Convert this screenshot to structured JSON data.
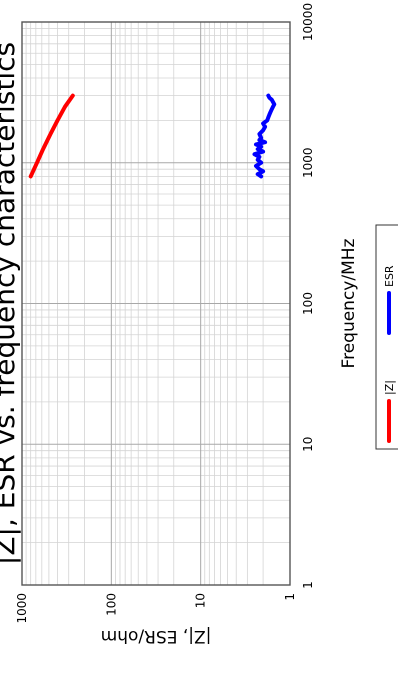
{
  "chart_data": {
    "type": "line",
    "title": "|Z|, ESR vs. frequency characteristics",
    "xlabel": "Frequency/MHz",
    "ylabel": "|Z|, ESR/ohm",
    "x_scale": "log",
    "y_scale": "log",
    "xlim": [
      1,
      10000
    ],
    "ylim": [
      1,
      1000
    ],
    "x_ticks": [
      "1",
      "10",
      "100",
      "1000",
      "10000"
    ],
    "y_ticks": [
      "1000",
      "100",
      "10",
      "1"
    ],
    "grid": true,
    "legend_position": "bottom",
    "series": [
      {
        "name": "|Z|",
        "color": "#ff0000",
        "x": [
          800,
          1000,
          1250,
          1600,
          2000,
          2500,
          3000
        ],
        "y": [
          800,
          680,
          580,
          480,
          400,
          330,
          270
        ]
      },
      {
        "name": "ESR",
        "color": "#0000ff",
        "x": [
          800,
          830,
          870,
          900,
          950,
          1000,
          1050,
          1100,
          1150,
          1200,
          1250,
          1300,
          1350,
          1400,
          1450,
          1500,
          1600,
          1700,
          1800,
          1900,
          2000,
          2100,
          2200,
          2300,
          2400,
          2500,
          2600,
          2700,
          2800,
          2900,
          3000
        ],
        "y": [
          2.1,
          2.3,
          2.0,
          2.2,
          2.4,
          2.1,
          2.3,
          2.2,
          2.5,
          2.0,
          2.3,
          2.1,
          2.4,
          1.9,
          2.2,
          2.1,
          2.2,
          2.0,
          1.9,
          2.0,
          1.8,
          1.75,
          1.7,
          1.65,
          1.6,
          1.55,
          1.5,
          1.55,
          1.6,
          1.7,
          1.75
        ]
      }
    ]
  }
}
